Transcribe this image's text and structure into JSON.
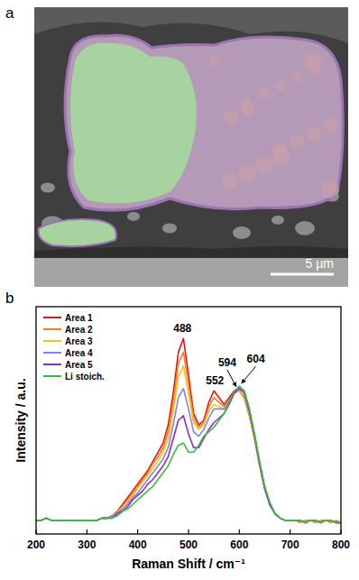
{
  "figure": {
    "panels": [
      {
        "label": "a",
        "scale_bar": "5 µm"
      },
      {
        "label": "b"
      }
    ]
  },
  "chart_data": {
    "type": "line",
    "xlabel": "Raman Shift / cm⁻¹",
    "ylabel": "Intensity / a.u.",
    "x": [
      200,
      210,
      220,
      230,
      240,
      250,
      260,
      270,
      280,
      290,
      300,
      310,
      320,
      330,
      340,
      350,
      360,
      370,
      380,
      390,
      400,
      410,
      420,
      430,
      440,
      450,
      460,
      470,
      480,
      490,
      500,
      510,
      520,
      530,
      540,
      550,
      560,
      570,
      580,
      590,
      600,
      610,
      620,
      630,
      640,
      650,
      660,
      670,
      680,
      690,
      700,
      710,
      720,
      730,
      740,
      750,
      760,
      770,
      780,
      790,
      800
    ],
    "xlim": [
      200,
      800
    ],
    "xticks": [
      200,
      300,
      400,
      500,
      600,
      700,
      800
    ],
    "ylim": [
      0,
      1
    ],
    "tick_labels": "x",
    "legend": "upper left",
    "series": [
      {
        "name": "Area 1",
        "color": "#e8141c",
        "values": [
          0.06,
          0.06,
          0.07,
          0.06,
          0.06,
          0.06,
          0.06,
          0.06,
          0.06,
          0.06,
          0.06,
          0.06,
          0.06,
          0.07,
          0.07,
          0.08,
          0.1,
          0.13,
          0.16,
          0.19,
          0.22,
          0.25,
          0.28,
          0.32,
          0.36,
          0.4,
          0.48,
          0.62,
          0.8,
          0.86,
          0.7,
          0.53,
          0.48,
          0.5,
          0.58,
          0.63,
          0.6,
          0.57,
          0.6,
          0.63,
          0.63,
          0.6,
          0.52,
          0.42,
          0.3,
          0.2,
          0.13,
          0.09,
          0.07,
          0.06,
          0.06,
          0.06,
          0.06,
          0.05,
          0.06,
          0.06,
          0.05,
          0.06,
          0.06,
          0.05,
          0.05
        ]
      },
      {
        "name": "Area 2",
        "color": "#f57c1f",
        "values": [
          0.06,
          0.06,
          0.07,
          0.06,
          0.06,
          0.06,
          0.06,
          0.06,
          0.06,
          0.06,
          0.06,
          0.06,
          0.06,
          0.07,
          0.07,
          0.08,
          0.1,
          0.12,
          0.15,
          0.18,
          0.21,
          0.24,
          0.27,
          0.31,
          0.34,
          0.38,
          0.45,
          0.58,
          0.75,
          0.8,
          0.66,
          0.51,
          0.47,
          0.49,
          0.56,
          0.6,
          0.58,
          0.56,
          0.59,
          0.62,
          0.63,
          0.6,
          0.52,
          0.42,
          0.3,
          0.2,
          0.13,
          0.09,
          0.07,
          0.06,
          0.06,
          0.06,
          0.05,
          0.06,
          0.06,
          0.05,
          0.06,
          0.06,
          0.05,
          0.06,
          0.05
        ]
      },
      {
        "name": "Area 3",
        "color": "#f2c318",
        "values": [
          0.06,
          0.06,
          0.07,
          0.06,
          0.06,
          0.06,
          0.06,
          0.06,
          0.06,
          0.06,
          0.06,
          0.06,
          0.06,
          0.07,
          0.07,
          0.08,
          0.09,
          0.12,
          0.14,
          0.17,
          0.2,
          0.23,
          0.26,
          0.29,
          0.32,
          0.36,
          0.42,
          0.54,
          0.69,
          0.74,
          0.62,
          0.49,
          0.46,
          0.48,
          0.54,
          0.57,
          0.56,
          0.55,
          0.58,
          0.62,
          0.63,
          0.61,
          0.53,
          0.42,
          0.3,
          0.2,
          0.13,
          0.09,
          0.07,
          0.06,
          0.06,
          0.06,
          0.06,
          0.05,
          0.06,
          0.06,
          0.05,
          0.06,
          0.06,
          0.05,
          0.05
        ]
      },
      {
        "name": "Area 4",
        "color": "#7f84f2",
        "values": [
          0.06,
          0.06,
          0.07,
          0.06,
          0.06,
          0.06,
          0.06,
          0.06,
          0.06,
          0.06,
          0.06,
          0.06,
          0.06,
          0.07,
          0.07,
          0.08,
          0.09,
          0.11,
          0.13,
          0.16,
          0.18,
          0.21,
          0.24,
          0.27,
          0.3,
          0.33,
          0.38,
          0.48,
          0.6,
          0.64,
          0.55,
          0.45,
          0.43,
          0.46,
          0.51,
          0.55,
          0.55,
          0.55,
          0.58,
          0.62,
          0.64,
          0.62,
          0.54,
          0.43,
          0.31,
          0.2,
          0.13,
          0.09,
          0.07,
          0.06,
          0.06,
          0.06,
          0.06,
          0.05,
          0.06,
          0.06,
          0.05,
          0.06,
          0.06,
          0.05,
          0.05
        ]
      },
      {
        "name": "Area 5",
        "color": "#8e2bd6",
        "values": [
          0.06,
          0.06,
          0.07,
          0.06,
          0.06,
          0.06,
          0.06,
          0.06,
          0.06,
          0.06,
          0.06,
          0.06,
          0.06,
          0.07,
          0.07,
          0.07,
          0.09,
          0.1,
          0.12,
          0.15,
          0.17,
          0.19,
          0.22,
          0.24,
          0.27,
          0.3,
          0.34,
          0.42,
          0.5,
          0.52,
          0.44,
          0.38,
          0.38,
          0.42,
          0.46,
          0.49,
          0.51,
          0.53,
          0.57,
          0.62,
          0.64,
          0.62,
          0.54,
          0.43,
          0.31,
          0.2,
          0.13,
          0.09,
          0.07,
          0.06,
          0.06,
          0.06,
          0.06,
          0.05,
          0.06,
          0.06,
          0.05,
          0.06,
          0.06,
          0.05,
          0.05
        ]
      },
      {
        "name": "Li stoich.",
        "color": "#33c23a",
        "values": [
          0.06,
          0.06,
          0.07,
          0.06,
          0.06,
          0.06,
          0.06,
          0.06,
          0.06,
          0.06,
          0.06,
          0.06,
          0.06,
          0.07,
          0.07,
          0.07,
          0.08,
          0.1,
          0.11,
          0.13,
          0.15,
          0.17,
          0.19,
          0.21,
          0.24,
          0.27,
          0.3,
          0.35,
          0.39,
          0.4,
          0.36,
          0.36,
          0.39,
          0.43,
          0.45,
          0.47,
          0.5,
          0.53,
          0.58,
          0.63,
          0.65,
          0.63,
          0.55,
          0.44,
          0.32,
          0.21,
          0.14,
          0.09,
          0.07,
          0.06,
          0.06,
          0.06,
          0.06,
          0.05,
          0.06,
          0.06,
          0.05,
          0.06,
          0.06,
          0.05,
          0.05
        ]
      }
    ],
    "annotations": [
      {
        "text": "488",
        "x": 488,
        "y": 0.89
      },
      {
        "text": "552",
        "x": 552,
        "y": 0.66
      },
      {
        "text": "594",
        "x": 594,
        "y": 0.635,
        "arrow": true
      },
      {
        "text": "604",
        "x": 604,
        "y": 0.65,
        "arrow": true
      }
    ]
  }
}
